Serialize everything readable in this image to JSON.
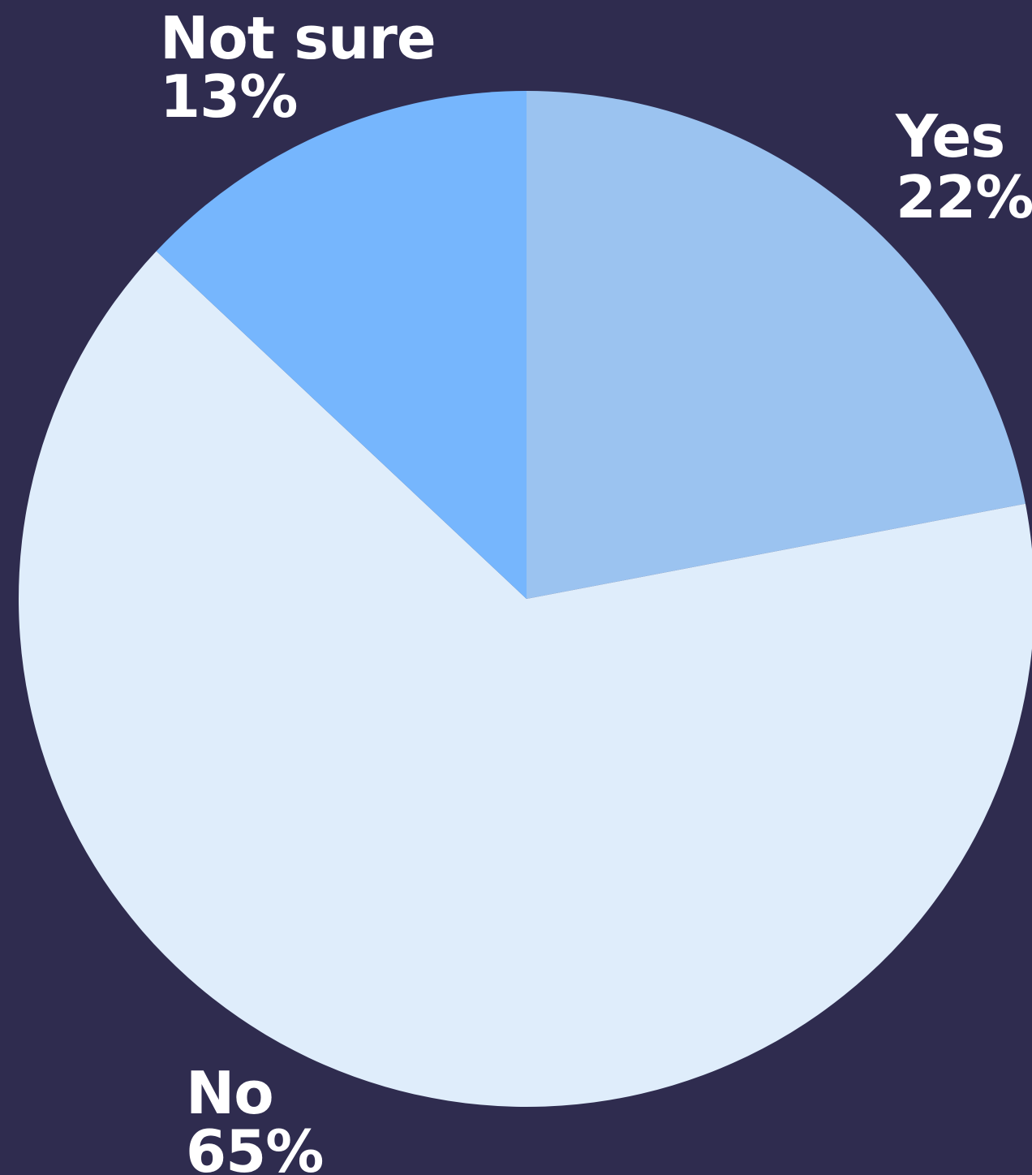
{
  "chart_data": {
    "type": "pie",
    "title": "",
    "slices": [
      {
        "label": "Yes",
        "value": 22,
        "value_label": "22%",
        "color": "#9bc3f0"
      },
      {
        "label": "No",
        "value": 65,
        "value_label": "65%",
        "color": "#dfedfb"
      },
      {
        "label": "Not sure",
        "value": 13,
        "value_label": "13%",
        "color": "#76b6fd"
      }
    ],
    "background": "#2f2c4f",
    "label_color": "#ffffff",
    "start": "top",
    "direction": "clockwise"
  }
}
